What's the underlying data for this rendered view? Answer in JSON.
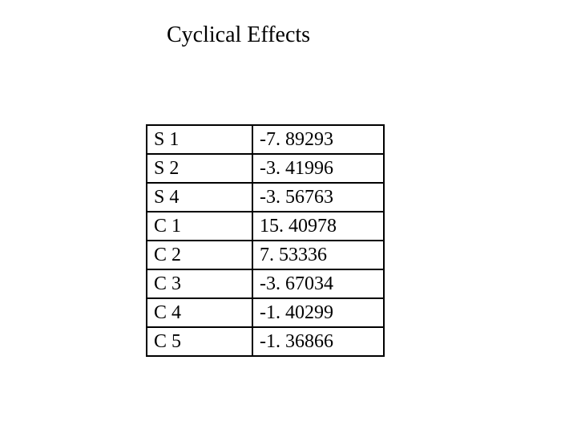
{
  "title": "Cyclical Effects",
  "table": {
    "type": "table",
    "columns": [
      {
        "key": "label",
        "width": 132,
        "align": "left"
      },
      {
        "key": "value",
        "width": 164,
        "align": "left"
      }
    ],
    "rows": [
      {
        "label": "S 1",
        "value": "-7. 89293"
      },
      {
        "label": "S 2",
        "value": "-3. 41996"
      },
      {
        "label": "S 4",
        "value": "-3. 56763"
      },
      {
        "label": "C 1",
        "value": "15. 40978"
      },
      {
        "label": "C 2",
        "value": "7. 53336"
      },
      {
        "label": "C 3",
        "value": "-3. 67034"
      },
      {
        "label": "C 4",
        "value": "-1. 40299"
      },
      {
        "label": "C 5",
        "value": "-1. 36866"
      }
    ],
    "border_color": "#000000",
    "border_width": 2,
    "background_color": "#ffffff",
    "font_family": "Times New Roman",
    "font_size": 24,
    "text_color": "#000000",
    "title_fontsize": 28
  }
}
